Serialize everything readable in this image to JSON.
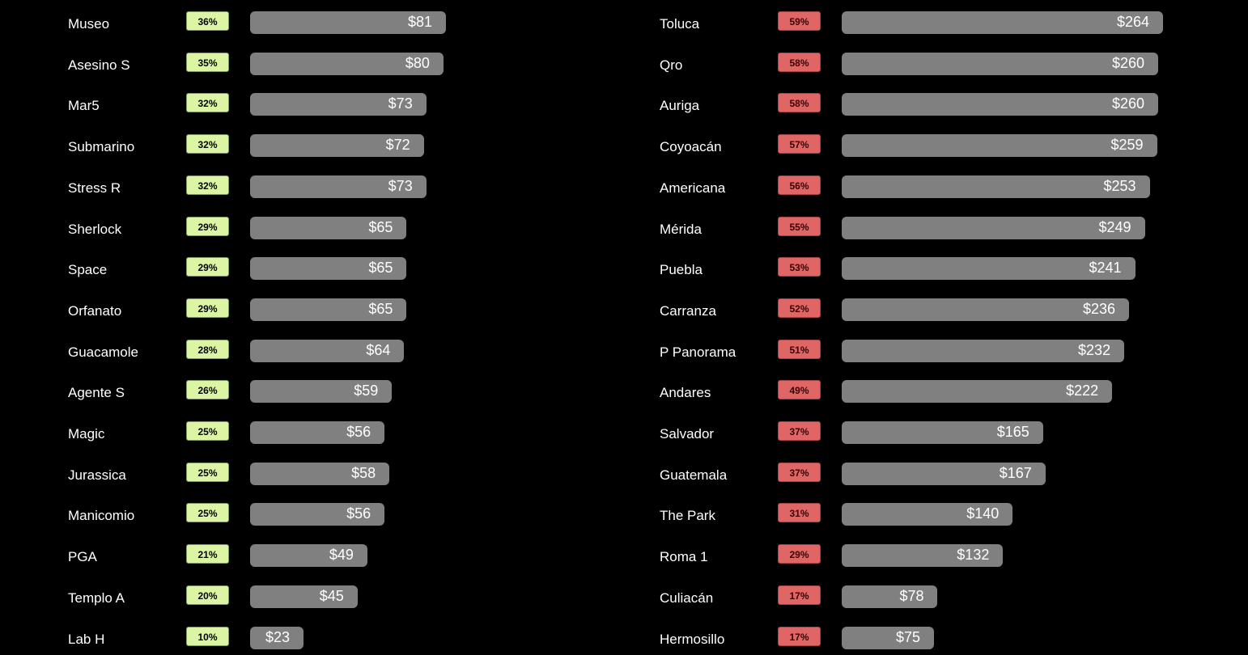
{
  "colors": {
    "background": "#000000",
    "bar": "#808080",
    "good_badge": "#dcf5a4",
    "bad_badge": "#e06666",
    "text": "#ffffff"
  },
  "chart_data": [
    {
      "type": "bar",
      "orientation": "horizontal",
      "title": "",
      "categories": [
        "Museo",
        "Asesino S",
        "Mar5",
        "Submarino",
        "Stress R",
        "Sherlock",
        "Space",
        "Orfanato",
        "Guacamole",
        "Agente S",
        "Magic",
        "Jurassica",
        "Manicomio",
        "PGA",
        "Templo A",
        "Lab H"
      ],
      "percent_labels": [
        "36%",
        "35%",
        "32%",
        "32%",
        "32%",
        "29%",
        "29%",
        "29%",
        "28%",
        "26%",
        "25%",
        "25%",
        "25%",
        "21%",
        "20%",
        "10%"
      ],
      "values": [
        81,
        80,
        73,
        72,
        73,
        65,
        65,
        65,
        64,
        59,
        56,
        58,
        56,
        49,
        45,
        23
      ],
      "value_labels": [
        "$81",
        "$80",
        "$73",
        "$72",
        "$73",
        "$65",
        "$65",
        "$65",
        "$64",
        "$59",
        "$56",
        "$58",
        "$56",
        "$49",
        "$45",
        "$23"
      ],
      "badge_style": "good",
      "badge_color": "#dcf5a4",
      "bar_color": "#808080"
    },
    {
      "type": "bar",
      "orientation": "horizontal",
      "title": "",
      "categories": [
        "Toluca",
        "Qro",
        "Auriga",
        "Coyoacán",
        "Americana",
        "Mérida",
        "Puebla",
        "Carranza",
        "P Panorama",
        "Andares",
        "Salvador",
        "Guatemala",
        "The Park",
        "Roma 1",
        "Culiacán",
        "Hermosillo"
      ],
      "percent_labels": [
        "59%",
        "58%",
        "58%",
        "57%",
        "56%",
        "55%",
        "53%",
        "52%",
        "51%",
        "49%",
        "37%",
        "37%",
        "31%",
        "29%",
        "17%",
        "17%"
      ],
      "values": [
        264,
        260,
        260,
        259,
        253,
        249,
        241,
        236,
        232,
        222,
        165,
        167,
        140,
        132,
        78,
        75
      ],
      "value_labels": [
        "$264",
        "$260",
        "$260",
        "$259",
        "$253",
        "$249",
        "$241",
        "$236",
        "$232",
        "$222",
        "$165",
        "$167",
        "$140",
        "$132",
        "$78",
        "$75"
      ],
      "badge_style": "bad",
      "badge_color": "#e06666",
      "bar_color": "#808080"
    }
  ]
}
